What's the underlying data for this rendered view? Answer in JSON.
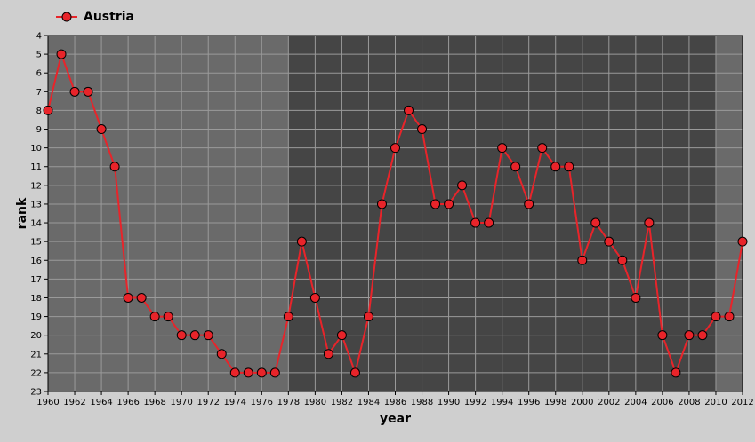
{
  "chart_data": {
    "type": "line",
    "legend": {
      "entries": [
        "Austria"
      ],
      "placement": "top-left"
    },
    "xlabel": "year",
    "ylabel": "rank",
    "xlim": [
      1960,
      2012
    ],
    "ylim": [
      4,
      23
    ],
    "y_inverted": true,
    "x_ticks": [
      1960,
      1962,
      1964,
      1966,
      1968,
      1970,
      1972,
      1974,
      1976,
      1978,
      1980,
      1982,
      1984,
      1986,
      1988,
      1990,
      1992,
      1994,
      1996,
      1998,
      2000,
      2002,
      2004,
      2006,
      2008,
      2010,
      2012
    ],
    "y_ticks": [
      4,
      5,
      6,
      7,
      8,
      9,
      10,
      11,
      12,
      13,
      14,
      15,
      16,
      17,
      18,
      19,
      20,
      21,
      22,
      23
    ],
    "bands": [
      {
        "from": 1960,
        "to": 1978,
        "color": "#6a6a6a"
      },
      {
        "from": 1978,
        "to": 2010,
        "color": "#454545"
      },
      {
        "from": 2010,
        "to": 2012,
        "color": "#6a6a6a"
      }
    ],
    "series": [
      {
        "name": "Austria",
        "color": "#e8242a",
        "x": [
          1960,
          1961,
          1962,
          1963,
          1964,
          1965,
          1966,
          1967,
          1968,
          1969,
          1970,
          1971,
          1972,
          1973,
          1974,
          1975,
          1976,
          1977,
          1978,
          1979,
          1980,
          1981,
          1982,
          1983,
          1984,
          1985,
          1986,
          1987,
          1988,
          1989,
          1990,
          1991,
          1992,
          1993,
          1994,
          1995,
          1996,
          1997,
          1998,
          1999,
          2000,
          2001,
          2002,
          2003,
          2004,
          2005,
          2006,
          2007,
          2008,
          2009,
          2010,
          2011,
          2012
        ],
        "values": [
          8,
          5,
          7,
          7,
          9,
          11,
          18,
          18,
          19,
          19,
          20,
          20,
          20,
          21,
          22,
          22,
          22,
          22,
          19,
          15,
          18,
          21,
          20,
          22,
          19,
          13,
          10,
          8,
          9,
          13,
          13,
          12,
          14,
          14,
          10,
          11,
          13,
          10,
          11,
          11,
          16,
          14,
          15,
          16,
          18,
          14,
          20,
          22,
          20,
          20,
          19,
          19,
          15
        ]
      }
    ]
  }
}
